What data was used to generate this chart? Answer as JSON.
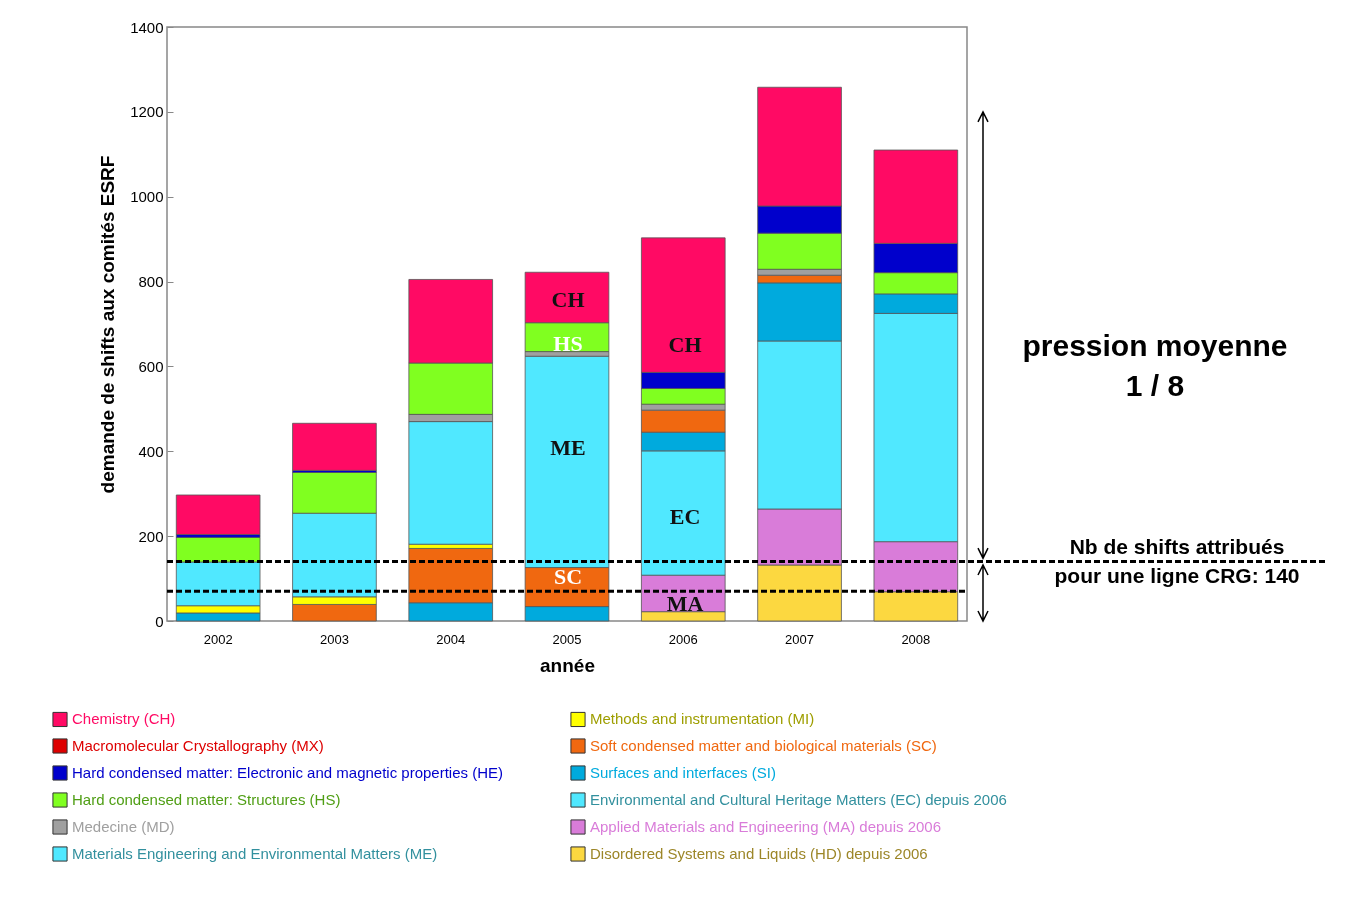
{
  "chart_data": {
    "type": "bar",
    "stacked": true,
    "xlabel": "année",
    "ylabel": "demande de shifts aux comités ESRF",
    "categories": [
      "2002",
      "2003",
      "2004",
      "2005",
      "2006",
      "2007",
      "2008"
    ],
    "ylim": [
      0,
      1400
    ],
    "yticks": [
      0,
      200,
      400,
      600,
      800,
      1000,
      1200,
      1400
    ],
    "legend": "bottom",
    "series": [
      {
        "name": "Disordered Systems and Liquids (HD) depuis 2006",
        "color": "#fcd840",
        "values": [
          null,
          null,
          null,
          null,
          22,
          132,
          69
        ]
      },
      {
        "name": "Applied Materials and Engineering (MA) depuis 2006",
        "color": "#d97cd9",
        "values": [
          null,
          null,
          null,
          null,
          86,
          132,
          118
        ]
      },
      {
        "name": "Environmental and Cultural Heritage Matters (EC) depuis 2006",
        "color": "#50e8ff",
        "values": [
          null,
          null,
          null,
          null,
          293,
          396,
          538
        ]
      },
      {
        "name": "Surfaces and interfaces (SI)",
        "color": "#00aadd",
        "values": [
          19,
          null,
          43,
          34,
          44,
          137,
          46
        ]
      },
      {
        "name": "Soft condensed matter and biological materials (SC)",
        "color": "#f06810",
        "values": [
          null,
          39,
          128,
          92,
          52,
          18,
          null
        ]
      },
      {
        "name": "Methods and instrumentation (MI)",
        "color": "#ffff00",
        "values": [
          17,
          18,
          10,
          null,
          null,
          null,
          null
        ]
      },
      {
        "name": "Materials Engineering and Environmental Matters (ME)",
        "color": "#50e8ff",
        "values": [
          103,
          197,
          289,
          498,
          null,
          null,
          null
        ]
      },
      {
        "name": "Medecine (MD)",
        "color": "#a0a0a0",
        "values": [
          null,
          null,
          17,
          11,
          14,
          14,
          null
        ]
      },
      {
        "name": "Hard condensed matter:  Structures (HS)",
        "color": "#80ff20",
        "values": [
          58,
          96,
          121,
          68,
          37,
          85,
          50
        ]
      },
      {
        "name": "Hard condensed matter:  Electronic and magnetic properties (HE)",
        "color": "#0000cc",
        "values": [
          7,
          5,
          null,
          null,
          38,
          64,
          69
        ]
      },
      {
        "name": "Macromolecular Crystallography (MX)",
        "color": "#dd0000",
        "values": [
          null,
          null,
          null,
          null,
          null,
          null,
          null
        ]
      },
      {
        "name": "Chemistry (CH)",
        "color": "#ff0a64",
        "values": [
          93,
          111,
          197,
          119,
          317,
          280,
          220
        ]
      }
    ],
    "ref_lines": [
      {
        "axis": "y",
        "value": 140,
        "label": "Nb de shifts attribués\npour une ligne CRG: 140",
        "line_style": "dashed",
        "color": "#000000"
      },
      {
        "axis": "y",
        "value": 70,
        "line_style": "dashed",
        "color": "#000000"
      }
    ],
    "annotations": [
      "CH",
      "HS",
      "ME",
      "SC",
      "CH",
      "EC",
      "MA",
      "pression moyenne\n1 / 8"
    ]
  }
}
